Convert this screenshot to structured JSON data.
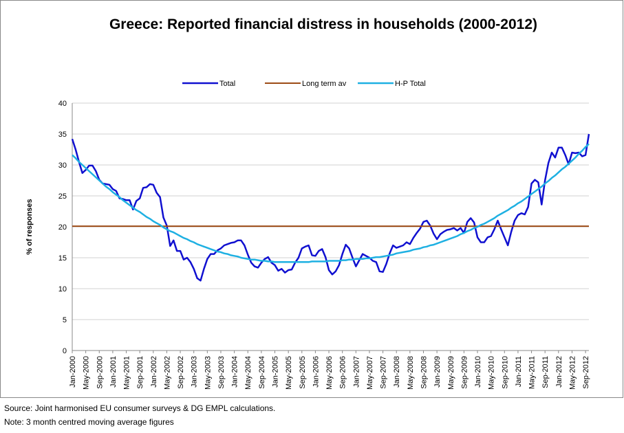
{
  "chart_data": {
    "type": "line",
    "title": "Greece: Reported financial distress in households (2000-2012)",
    "y_label": "% of responses",
    "source": "Source: Joint harmonised EU consumer surveys & DG EMPL calculations.",
    "note": "Note: 3 month centred moving average figures",
    "ylim": [
      0,
      40
    ],
    "yticks": [
      0,
      5,
      10,
      15,
      20,
      25,
      30,
      35,
      40
    ],
    "grid": true,
    "legend": "top",
    "categories": [
      "Jan-2000",
      null,
      null,
      null,
      "May-2000",
      null,
      null,
      null,
      "Sep-2000",
      null,
      null,
      null,
      "Jan-2001",
      null,
      null,
      null,
      "May-2001",
      null,
      null,
      null,
      "Sep-2001",
      null,
      null,
      null,
      "Jan-2002",
      null,
      null,
      null,
      "May-2002",
      null,
      null,
      null,
      "Sep-2002",
      null,
      null,
      null,
      "Jan-2003",
      null,
      null,
      null,
      "May-2003",
      null,
      null,
      null,
      "Sep-2003",
      null,
      null,
      null,
      "Jan-2004",
      null,
      null,
      null,
      "May-2004",
      null,
      null,
      null,
      "Sep-2004",
      null,
      null,
      null,
      "Jan-2005",
      null,
      null,
      null,
      "May-2005",
      null,
      null,
      null,
      "Sep-2005",
      null,
      null,
      null,
      "Jan-2006",
      null,
      null,
      null,
      "May-2006",
      null,
      null,
      null,
      "Sep-2006",
      null,
      null,
      null,
      "Jan-2007",
      null,
      null,
      null,
      "May-2007",
      null,
      null,
      null,
      "Sep-2007",
      null,
      null,
      null,
      "Jan-2008",
      null,
      null,
      null,
      "May-2008",
      null,
      null,
      null,
      "Sep-2008",
      null,
      null,
      null,
      "Jan-2009",
      null,
      null,
      null,
      "May-2009",
      null,
      null,
      null,
      "Sep-2009",
      null,
      null,
      null,
      "Jan-2010",
      null,
      null,
      null,
      "May-2010",
      null,
      null,
      null,
      "Sep-2010",
      null,
      null,
      null,
      "Jan-2011",
      null,
      null,
      null,
      "May-2011",
      null,
      null,
      null,
      "Sep-2011",
      null,
      null,
      null,
      "Jan-2012",
      null,
      null,
      null,
      "May-2012",
      null,
      null,
      null,
      "Sep-2012",
      null
    ],
    "series": [
      {
        "name": "Total",
        "color": "#1010d0",
        "width": 2.5,
        "values": [
          34.2,
          32.5,
          30.5,
          28.7,
          29.2,
          29.9,
          29.9,
          29,
          27.6,
          27,
          26.9,
          26.8,
          26.1,
          25.8,
          24.6,
          24.5,
          24.3,
          24.3,
          22.8,
          24.2,
          24.6,
          26.3,
          26.4,
          26.9,
          26.8,
          25.5,
          24.8,
          21.5,
          20.2,
          16.9,
          17.8,
          16.1,
          16.1,
          14.7,
          15,
          14.3,
          13.2,
          11.7,
          11.3,
          13.2,
          14.8,
          15.6,
          15.6,
          16.2,
          16.5,
          17,
          17.2,
          17.4,
          17.5,
          17.8,
          17.8,
          17,
          15.5,
          14.2,
          13.6,
          13.4,
          14.2,
          14.8,
          15.1,
          14.2,
          13.8,
          12.9,
          13.2,
          12.6,
          13,
          13.1,
          14.2,
          15,
          16.5,
          16.8,
          17,
          15.4,
          15.3,
          16.1,
          16.4,
          15.1,
          13,
          12.3,
          12.8,
          13.8,
          15.6,
          17.1,
          16.5,
          15,
          13.6,
          14.6,
          15.6,
          15.3,
          15,
          14.5,
          14.3,
          12.8,
          12.7,
          14,
          15.7,
          17,
          16.6,
          16.8,
          17,
          17.5,
          17.2,
          18.2,
          19,
          19.7,
          20.8,
          21,
          20.2,
          18.9,
          18,
          18.8,
          19.2,
          19.5,
          19.6,
          19.8,
          19.4,
          19.8,
          19,
          20.8,
          21.4,
          20.7,
          18.3,
          17.5,
          17.5,
          18.3,
          18.5,
          19.6,
          21,
          19.6,
          18.3,
          17,
          19.2,
          21,
          21.9,
          22.2,
          22,
          23.2,
          27,
          27.6,
          27.2,
          23.6,
          27.5,
          30.3,
          32,
          31.2,
          32.8,
          32.8,
          31.6,
          30.1,
          32,
          31.9,
          32,
          31.4,
          31.6,
          35
        ]
      },
      {
        "name": "Long term av",
        "color": "#9c4a14",
        "width": 2,
        "values": [
          20.1,
          20.1,
          20.1,
          20.1,
          20.1,
          20.1,
          20.1,
          20.1,
          20.1,
          20.1,
          20.1,
          20.1,
          20.1,
          20.1,
          20.1,
          20.1,
          20.1,
          20.1,
          20.1,
          20.1,
          20.1,
          20.1,
          20.1,
          20.1,
          20.1,
          20.1,
          20.1,
          20.1,
          20.1,
          20.1,
          20.1,
          20.1,
          20.1,
          20.1,
          20.1,
          20.1,
          20.1,
          20.1,
          20.1,
          20.1,
          20.1,
          20.1,
          20.1,
          20.1,
          20.1,
          20.1,
          20.1,
          20.1,
          20.1,
          20.1,
          20.1,
          20.1,
          20.1,
          20.1,
          20.1,
          20.1,
          20.1,
          20.1,
          20.1,
          20.1,
          20.1,
          20.1,
          20.1,
          20.1,
          20.1,
          20.1,
          20.1,
          20.1,
          20.1,
          20.1,
          20.1,
          20.1,
          20.1,
          20.1,
          20.1,
          20.1,
          20.1,
          20.1,
          20.1,
          20.1,
          20.1,
          20.1,
          20.1,
          20.1,
          20.1,
          20.1,
          20.1,
          20.1,
          20.1,
          20.1,
          20.1,
          20.1,
          20.1,
          20.1,
          20.1,
          20.1,
          20.1,
          20.1,
          20.1,
          20.1,
          20.1,
          20.1,
          20.1,
          20.1,
          20.1,
          20.1,
          20.1,
          20.1,
          20.1,
          20.1,
          20.1,
          20.1,
          20.1,
          20.1,
          20.1,
          20.1,
          20.1,
          20.1,
          20.1,
          20.1,
          20.1,
          20.1,
          20.1,
          20.1,
          20.1,
          20.1,
          20.1,
          20.1,
          20.1,
          20.1,
          20.1,
          20.1,
          20.1,
          20.1,
          20.1,
          20.1,
          20.1,
          20.1,
          20.1,
          20.1,
          20.1,
          20.1,
          20.1,
          20.1,
          20.1,
          20.1,
          20.1,
          20.1,
          20.1,
          20.1,
          20.1,
          20.1,
          20.1,
          20.1
        ]
      },
      {
        "name": "H-P Total",
        "color": "#1eb0e2",
        "width": 2.5,
        "values": [
          31.6,
          31.1,
          30.5,
          30.0,
          29.5,
          29.0,
          28.5,
          28.0,
          27.5,
          27.0,
          26.5,
          26.1,
          25.6,
          25.2,
          24.8,
          24.3,
          23.9,
          23.5,
          23.1,
          22.7,
          22.4,
          22.0,
          21.6,
          21.3,
          20.9,
          20.6,
          20.3,
          19.9,
          19.6,
          19.3,
          19.1,
          18.8,
          18.5,
          18.2,
          18.0,
          17.7,
          17.5,
          17.2,
          17.0,
          16.8,
          16.6,
          16.4,
          16.2,
          16.0,
          15.9,
          15.7,
          15.6,
          15.4,
          15.3,
          15.2,
          15.0,
          14.9,
          14.8,
          14.7,
          14.7,
          14.6,
          14.5,
          14.5,
          14.4,
          14.4,
          14.3,
          14.3,
          14.3,
          14.3,
          14.3,
          14.3,
          14.3,
          14.3,
          14.3,
          14.3,
          14.3,
          14.4,
          14.4,
          14.4,
          14.4,
          14.4,
          14.5,
          14.5,
          14.5,
          14.5,
          14.6,
          14.6,
          14.7,
          14.7,
          14.8,
          14.8,
          14.8,
          14.9,
          14.9,
          15.0,
          15.1,
          15.1,
          15.2,
          15.3,
          15.4,
          15.5,
          15.7,
          15.8,
          15.9,
          16.0,
          16.1,
          16.3,
          16.4,
          16.5,
          16.7,
          16.8,
          17.0,
          17.1,
          17.3,
          17.5,
          17.7,
          17.9,
          18.1,
          18.3,
          18.5,
          18.8,
          19.0,
          19.3,
          19.5,
          19.8,
          20.0,
          20.3,
          20.5,
          20.8,
          21.1,
          21.4,
          21.8,
          22.1,
          22.4,
          22.7,
          23.1,
          23.4,
          23.8,
          24.1,
          24.5,
          24.9,
          25.3,
          25.7,
          26.1,
          26.5,
          27.0,
          27.4,
          27.9,
          28.3,
          28.8,
          29.3,
          29.7,
          30.2,
          30.7,
          31.2,
          31.8,
          32.3,
          32.9,
          33.4
        ]
      }
    ]
  }
}
